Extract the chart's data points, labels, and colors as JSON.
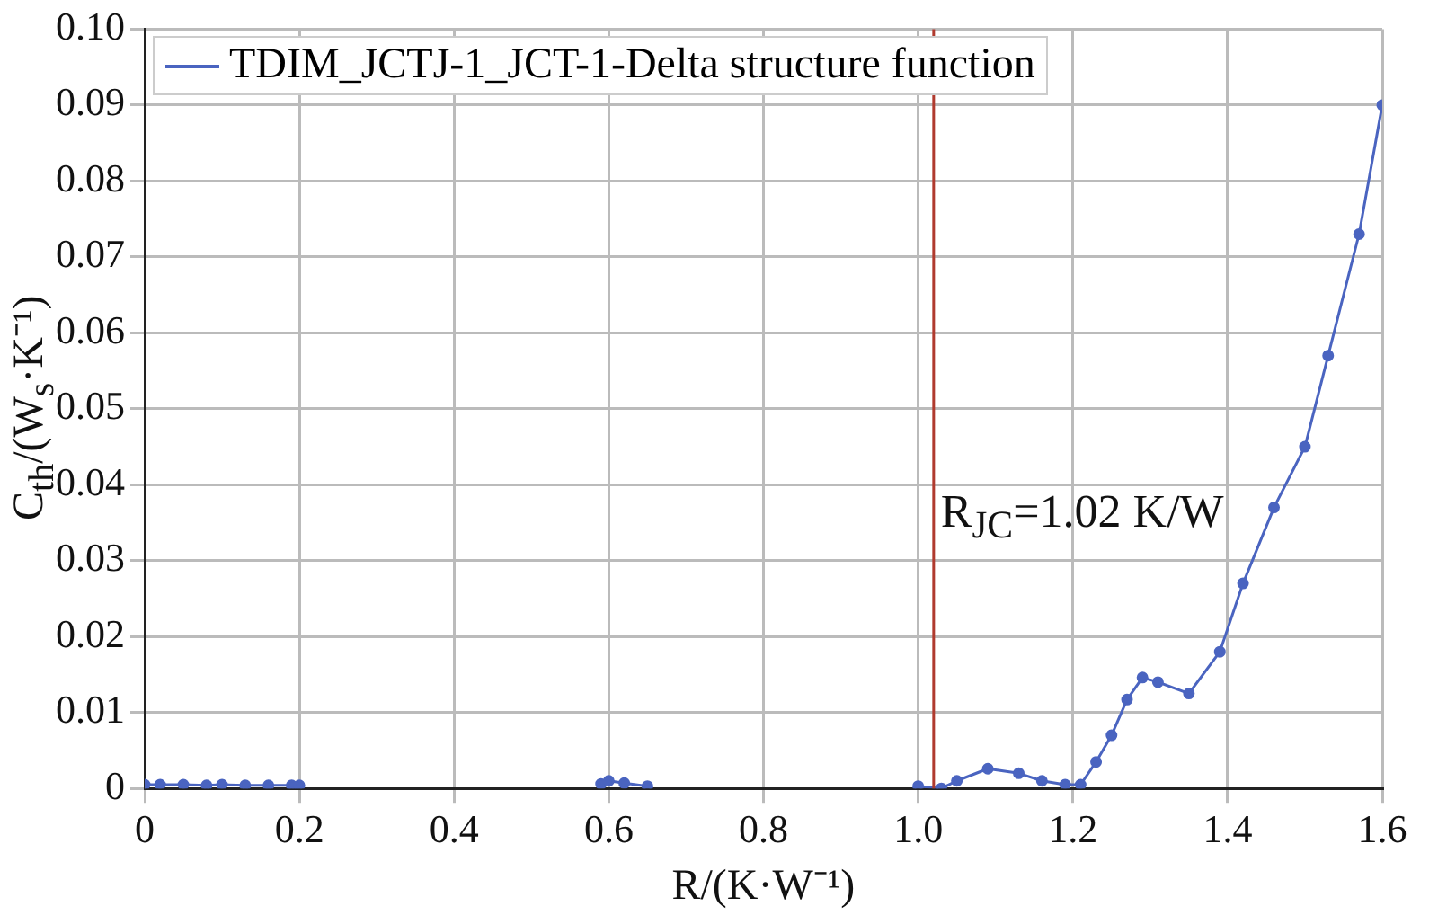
{
  "chart_data": {
    "type": "line",
    "xlabel": "R/(K·W⁻¹)",
    "ylabel": "C$_{th}$/(W$_{s}$·K⁻¹)",
    "x": [
      0,
      0.02,
      0.05,
      0.08,
      0.1,
      0.13,
      0.16,
      0.19,
      0.2,
      0.4,
      0.59,
      0.6,
      0.62,
      0.65,
      0.8,
      1.0,
      1.03,
      1.05,
      1.09,
      1.13,
      1.16,
      1.19,
      1.21,
      1.23,
      1.25,
      1.27,
      1.29,
      1.31,
      1.35,
      1.39,
      1.42,
      1.46,
      1.5,
      1.53,
      1.57,
      1.6
    ],
    "series": [
      {
        "name": "TDIM_JCTJ-1_JCT-1-Delta structure function",
        "color": "#4a64c0",
        "values": [
          0.0005,
          0.0005,
          0.0005,
          0.0004,
          0.0005,
          0.0004,
          0.0004,
          0.0004,
          0.0004,
          null,
          0.0006,
          0.001,
          0.0007,
          0.0003,
          null,
          0.0003,
          0,
          0.001,
          0.0026,
          0.002,
          0.001,
          0.0005,
          0.0005,
          0.0035,
          0.007,
          0.0117,
          0.0146,
          0.014,
          0.0125,
          0.018,
          0.027,
          0.037,
          0.045,
          0.057,
          0.073,
          0.09
        ]
      }
    ],
    "xlim": [
      0,
      1.6
    ],
    "xticks": [
      0,
      0.2,
      0.4,
      0.6,
      0.8,
      {
        "value": 1,
        "label": "1.0"
      },
      1.2,
      1.4,
      1.6
    ],
    "ylim": [
      0,
      0.1
    ],
    "yticks": [
      0,
      0.01,
      0.02,
      0.03,
      0.04,
      0.05,
      0.06,
      0.07,
      0.08,
      0.09,
      {
        "value": 0.1,
        "label": "0.10"
      }
    ],
    "ref_lines": [
      {
        "axis": "x",
        "value": 1.02,
        "label": "R$_{JC}$=1.02 K/W",
        "color": "#b03a2e"
      }
    ],
    "grid": true,
    "legend": "top left",
    "marker": "circle",
    "line_style": "solid"
  }
}
